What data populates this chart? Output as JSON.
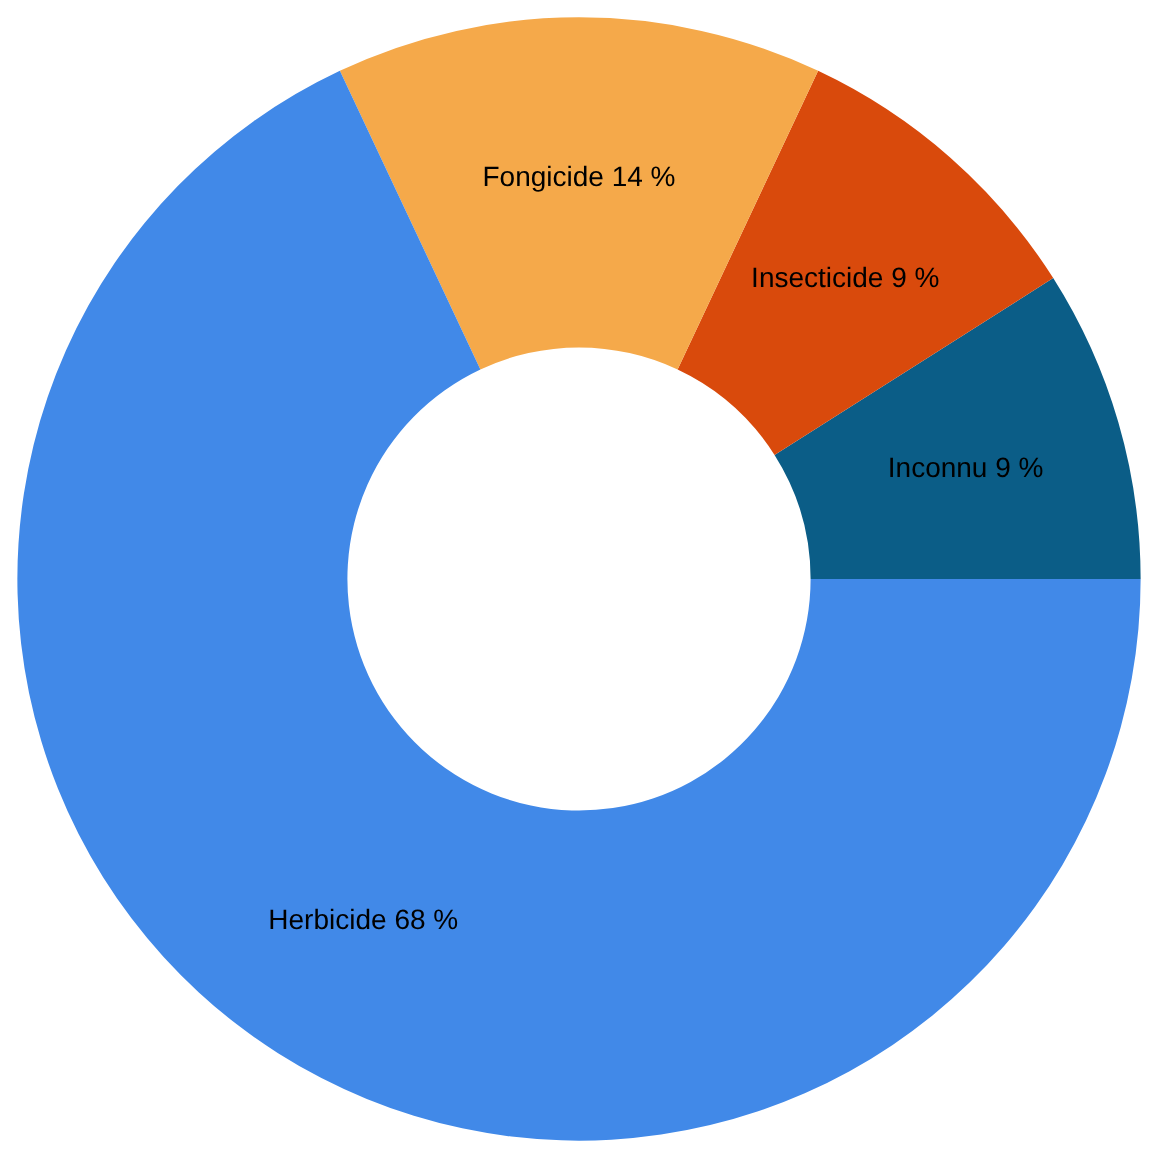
{
  "chart_data": {
    "type": "donut",
    "categories": [
      "Inconnu",
      "Insecticide",
      "Fongicide",
      "Herbicide"
    ],
    "values": [
      9,
      9,
      14,
      68
    ],
    "colors": [
      "#0b5d87",
      "#d94a0c",
      "#f5a94a",
      "#4189e8"
    ],
    "value_labels": [
      "9 %",
      "9 %",
      "14 %",
      "68 %"
    ],
    "legend": false
  }
}
